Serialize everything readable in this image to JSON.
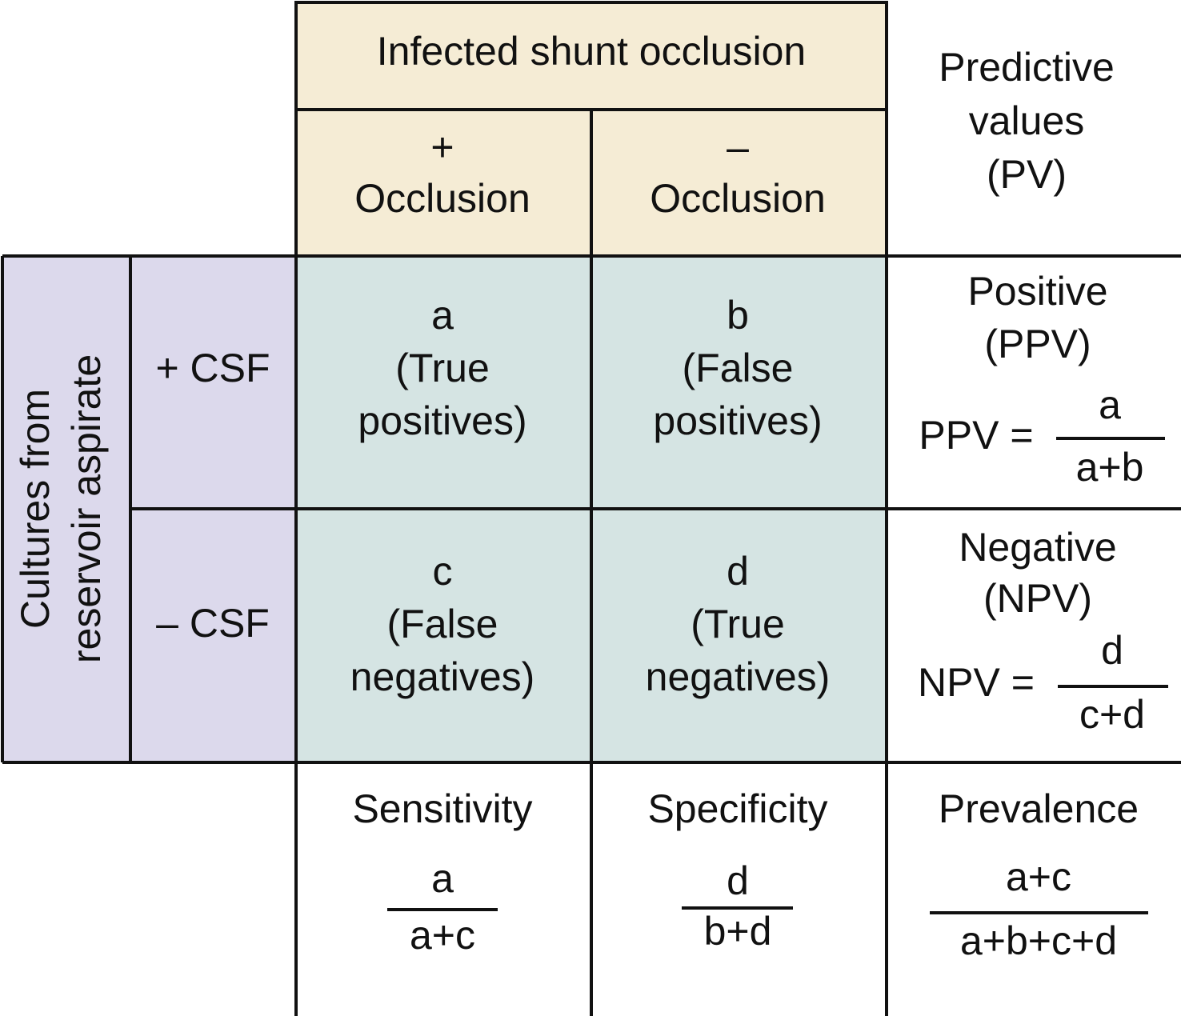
{
  "header": {
    "title": "Infected shunt occlusion"
  },
  "columns": [
    {
      "sign": "+",
      "label": "Occlusion"
    },
    {
      "sign": "–",
      "label": "Occlusion"
    }
  ],
  "pv_header": [
    "Predictive",
    "values",
    "(PV)"
  ],
  "row_group": [
    "Cultures from",
    "reservoir aspirate"
  ],
  "rows": [
    "+ CSF",
    "– CSF"
  ],
  "cells": [
    [
      {
        "letter": "a",
        "lines": [
          "(True",
          "positives)"
        ]
      },
      {
        "letter": "b",
        "lines": [
          "(False",
          "positives)"
        ]
      }
    ],
    [
      {
        "letter": "c",
        "lines": [
          "(False",
          "negatives)"
        ]
      },
      {
        "letter": "d",
        "lines": [
          "(True",
          "negatives)"
        ]
      }
    ]
  ],
  "predictive": [
    {
      "lines": [
        "Positive",
        "(PPV)"
      ],
      "label": "PPV =",
      "numerator": "a",
      "denominator": "a+b"
    },
    {
      "lines": [
        "Negative",
        "(NPV)"
      ],
      "label": "NPV =",
      "numerator": "d",
      "denominator": "c+d"
    }
  ],
  "footer": [
    {
      "title": "Sensitivity",
      "numerator": "a",
      "denominator": "a+c"
    },
    {
      "title": "Specificity",
      "numerator": "d",
      "denominator": "b+d"
    },
    {
      "title": "Prevalence",
      "numerator": "a+c",
      "denominator": "a+b+c+d"
    }
  ]
}
